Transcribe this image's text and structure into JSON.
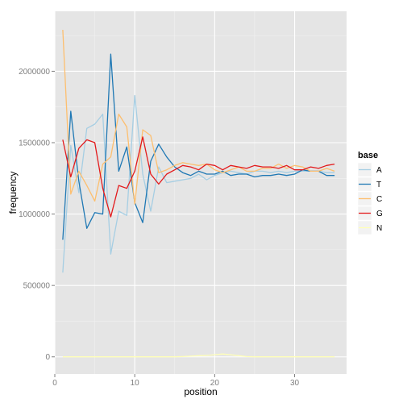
{
  "chart_data": {
    "type": "line",
    "xlabel": "position",
    "ylabel": "frequency",
    "xlim": [
      0,
      36.5
    ],
    "ylim": [
      -120000,
      2420000
    ],
    "x_ticks": [
      0,
      10,
      20,
      30
    ],
    "y_ticks": [
      0,
      500000,
      1000000,
      1500000,
      2000000
    ],
    "x_tick_labels": [
      "0",
      "10",
      "20",
      "30"
    ],
    "y_tick_labels": [
      "0",
      "500000",
      "1000000",
      "1500000",
      "2000000"
    ],
    "grid": true,
    "legend": {
      "title": "base",
      "position": "right"
    },
    "x": [
      1,
      2,
      3,
      4,
      5,
      6,
      7,
      8,
      9,
      10,
      11,
      12,
      13,
      14,
      15,
      16,
      17,
      18,
      19,
      20,
      21,
      22,
      23,
      24,
      25,
      26,
      27,
      28,
      29,
      30,
      31,
      32,
      33,
      34,
      35
    ],
    "series": [
      {
        "name": "A",
        "color": "#a6cee3",
        "values": [
          590000,
          1480000,
          1150000,
          1600000,
          1630000,
          1700000,
          720000,
          1020000,
          990000,
          1830000,
          1280000,
          1020000,
          1330000,
          1220000,
          1230000,
          1240000,
          1250000,
          1280000,
          1240000,
          1270000,
          1290000,
          1300000,
          1290000,
          1280000,
          1300000,
          1300000,
          1290000,
          1300000,
          1290000,
          1300000,
          1300000,
          1300000,
          1300000,
          1290000,
          1290000
        ]
      },
      {
        "name": "T",
        "color": "#1f78b4",
        "values": [
          820000,
          1720000,
          1230000,
          900000,
          1010000,
          1000000,
          2120000,
          1300000,
          1470000,
          1080000,
          940000,
          1370000,
          1490000,
          1400000,
          1330000,
          1290000,
          1270000,
          1300000,
          1280000,
          1280000,
          1300000,
          1270000,
          1280000,
          1280000,
          1260000,
          1270000,
          1270000,
          1280000,
          1270000,
          1280000,
          1310000,
          1300000,
          1300000,
          1270000,
          1270000
        ]
      },
      {
        "name": "C",
        "color": "#fdbf6f",
        "values": [
          2290000,
          1140000,
          1300000,
          1200000,
          1090000,
          1350000,
          1400000,
          1700000,
          1610000,
          1070000,
          1590000,
          1550000,
          1290000,
          1310000,
          1340000,
          1360000,
          1350000,
          1340000,
          1350000,
          1310000,
          1290000,
          1310000,
          1330000,
          1300000,
          1300000,
          1320000,
          1320000,
          1350000,
          1320000,
          1340000,
          1330000,
          1300000,
          1300000,
          1320000,
          1300000
        ]
      },
      {
        "name": "G",
        "color": "#e31a1c",
        "values": [
          1520000,
          1260000,
          1460000,
          1520000,
          1500000,
          1180000,
          980000,
          1200000,
          1180000,
          1300000,
          1540000,
          1280000,
          1210000,
          1280000,
          1310000,
          1340000,
          1330000,
          1310000,
          1350000,
          1340000,
          1310000,
          1340000,
          1330000,
          1320000,
          1340000,
          1330000,
          1330000,
          1320000,
          1340000,
          1310000,
          1310000,
          1330000,
          1320000,
          1340000,
          1350000
        ]
      },
      {
        "name": "N",
        "color": "#ffffb8",
        "values": [
          0,
          0,
          0,
          0,
          0,
          0,
          0,
          0,
          0,
          0,
          0,
          0,
          0,
          0,
          0,
          2000,
          5000,
          8000,
          10000,
          15000,
          20000,
          15000,
          8000,
          2000,
          0,
          0,
          0,
          0,
          0,
          0,
          0,
          0,
          0,
          0,
          0
        ]
      }
    ]
  }
}
